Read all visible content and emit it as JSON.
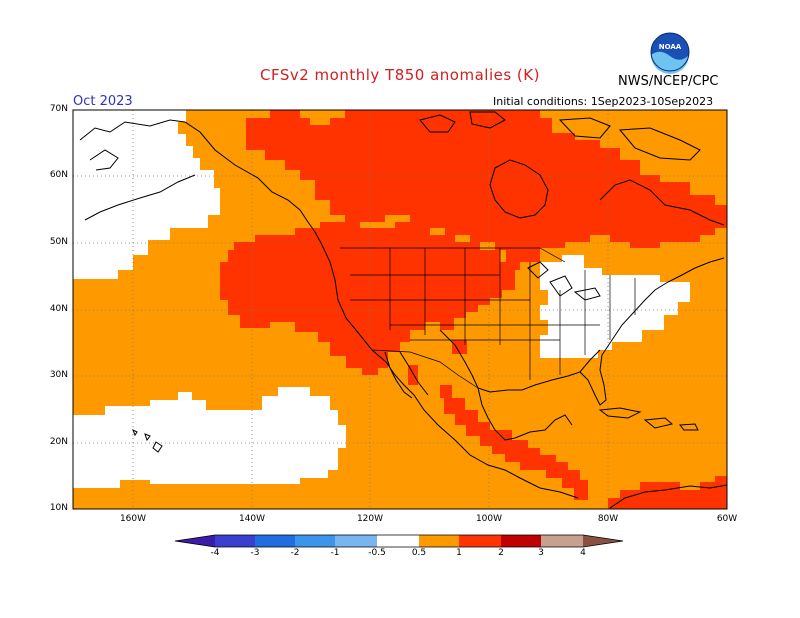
{
  "header": {
    "title": "CFSv2 monthly T850 anomalies (K)",
    "month": "Oct 2023",
    "initial_conditions": "Initial conditions: 1Sep2023-10Sep2023",
    "agency": "NWS/NCEP/CPC",
    "logo_text": "NOAA"
  },
  "map": {
    "lat_labels": [
      "70N",
      "60N",
      "50N",
      "40N",
      "30N",
      "20N",
      "10N"
    ],
    "lon_labels": [
      "160W",
      "140W",
      "120W",
      "100W",
      "80W",
      "60W"
    ],
    "lon_range": [
      -170,
      -60
    ],
    "lat_range": [
      10,
      70
    ]
  },
  "colorbar": {
    "labels": [
      "-4",
      "-3",
      "-2",
      "-1",
      "-0.5",
      "0.5",
      "1",
      "2",
      "3",
      "4"
    ],
    "colors": {
      "lt4": "#3a1ca8",
      "m4_m3": "#3b3fd0",
      "m3_m2": "#1f6de0",
      "m2_m1": "#3c95ea",
      "m1_m05": "#78b6f0",
      "neutral": "#ffffff",
      "p05_p1": "#ff9900",
      "p1_p2": "#ff3300",
      "p2_p3": "#c00000",
      "p3_p4": "#c8a090",
      "gt4": "#8a5040"
    }
  }
}
